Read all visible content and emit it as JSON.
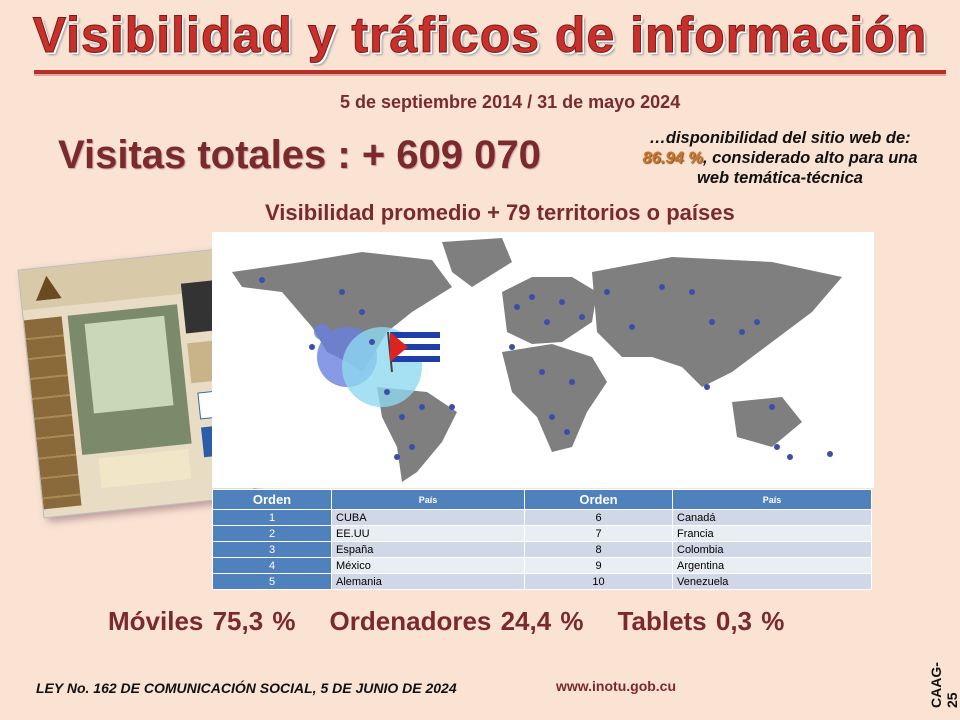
{
  "title": "Visibilidad y tráficos de  información",
  "date_range": "5 de septiembre 2014 / 31 de mayo  2024",
  "visits": "Visitas totales : + 609 070",
  "availability": {
    "prefix": "…disponibilidad del sitio web de: ",
    "value": "86.94 %",
    "suffix": ", considerado alto para una web temática-técnica"
  },
  "visibility": "Visibilidad promedio + 79 territorios o países",
  "table": {
    "headers": [
      "Orden",
      "País",
      "Orden",
      "País"
    ],
    "rows": [
      [
        "1",
        "CUBA",
        "6",
        "Canadá"
      ],
      [
        "2",
        "EE.UU",
        "7",
        "Francia"
      ],
      [
        "3",
        "España",
        "8",
        "Colombia"
      ],
      [
        "4",
        "México",
        "9",
        "Argentina"
      ],
      [
        "5",
        "Alemania",
        "10",
        "Venezuela"
      ]
    ]
  },
  "devices": [
    {
      "label": "Móviles 75,3 %"
    },
    {
      "label": "Ordenadores 24,4 %"
    },
    {
      "label": "Tablets  0,3 %"
    }
  ],
  "law": "LEY No. 162 DE COMUNICACIÓN SOCIAL, 5 DE JUNIO DE 2024",
  "website": "www.inotu.gob.cu",
  "code": "CAAG-25",
  "colors": {
    "background": "#fae3d3",
    "title": "#c8302c",
    "text": "#7a2a2a",
    "table_header": "#4f81bd",
    "map_land": "#7f7f7f",
    "map_marker": "#3b4fa8"
  }
}
